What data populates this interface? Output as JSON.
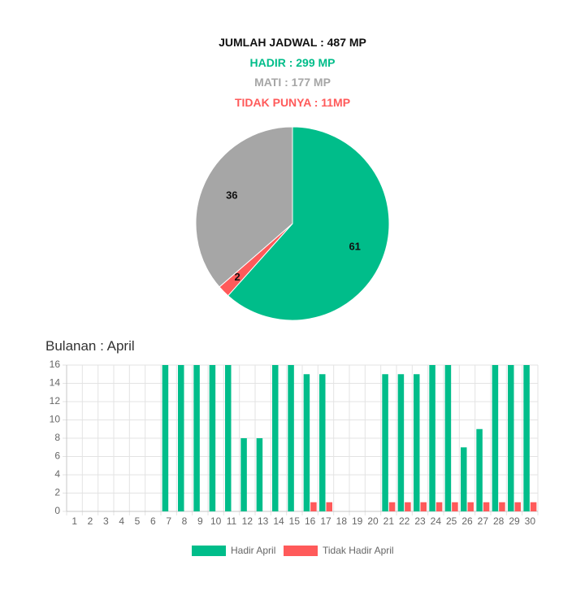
{
  "colors": {
    "hadir": "#00bd8a",
    "mati": "#a6a6a6",
    "tidak": "#ff5a5a",
    "text": "#111111"
  },
  "summary": {
    "total": "JUMLAH JADWAL : 487 MP",
    "hadir": "HADIR : 299 MP",
    "mati": "MATI : 177 MP",
    "tidak": "TIDAK PUNYA : 11MP"
  },
  "monthly": {
    "title": "Bulanan : April"
  },
  "chart_data": [
    {
      "type": "pie",
      "slices": [
        {
          "label": "61",
          "value": 61,
          "color": "#00bd8a"
        },
        {
          "label": "2",
          "value": 2,
          "color": "#ff5a5a"
        },
        {
          "label": "36",
          "value": 36,
          "color": "#a6a6a6"
        }
      ]
    },
    {
      "type": "bar",
      "categories": [
        "1",
        "2",
        "3",
        "4",
        "5",
        "6",
        "7",
        "8",
        "9",
        "10",
        "11",
        "12",
        "13",
        "14",
        "15",
        "16",
        "17",
        "18",
        "19",
        "20",
        "21",
        "22",
        "23",
        "24",
        "25",
        "26",
        "27",
        "28",
        "29",
        "30"
      ],
      "series": [
        {
          "name": "Hadir April",
          "color": "#00bd8a",
          "values": [
            0,
            0,
            0,
            0,
            0,
            0,
            16,
            16,
            16,
            16,
            16,
            8,
            8,
            16,
            16,
            15,
            15,
            0,
            0,
            0,
            15,
            15,
            15,
            16,
            16,
            7,
            9,
            16,
            16,
            16
          ]
        },
        {
          "name": "Tidak Hadir April",
          "color": "#ff5a5a",
          "values": [
            0,
            0,
            0,
            0,
            0,
            0,
            0,
            0,
            0,
            0,
            0,
            0,
            0,
            0,
            0,
            1,
            1,
            0,
            0,
            0,
            1,
            1,
            1,
            1,
            1,
            1,
            1,
            1,
            1,
            1
          ]
        }
      ],
      "yticks": [
        "0",
        "2",
        "4",
        "6",
        "8",
        "10",
        "12",
        "14",
        "16"
      ],
      "ylim": [
        0,
        16
      ],
      "grid": true,
      "legend": "bottom-center"
    }
  ]
}
